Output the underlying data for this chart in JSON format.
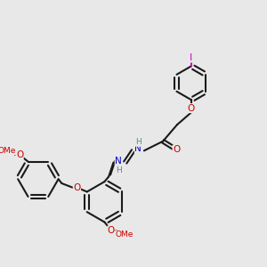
{
  "background_color": "#e8e8e8",
  "figsize": [
    3.0,
    3.0
  ],
  "dpi": 100,
  "bond_color": "#1a1a1a",
  "bond_width": 1.5,
  "atom_colors": {
    "C": "#1a1a1a",
    "H": "#5a8a8a",
    "N": "#0000cc",
    "O": "#cc0000",
    "I": "#cc00cc"
  },
  "font_size": 7.5
}
